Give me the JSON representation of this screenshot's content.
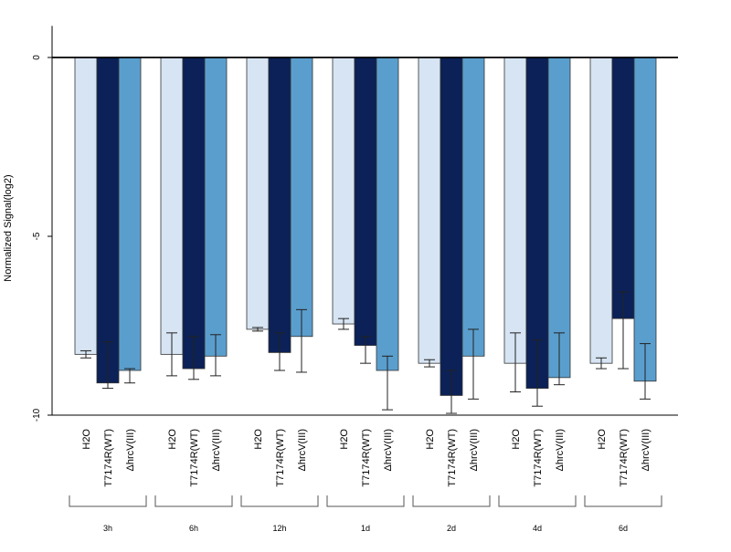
{
  "chart_data": {
    "type": "bar",
    "ylabel": "Normalized Signal(log2)",
    "ylim": [
      -10,
      0.5
    ],
    "yticks": [
      0,
      -5,
      -10
    ],
    "groups": [
      "3h",
      "6h",
      "12h",
      "1d",
      "2d",
      "4d",
      "6d"
    ],
    "treatments": [
      "H2O",
      "T7174R(WT)",
      "ΔhrcV(III)"
    ],
    "colors": [
      "#d6e4f3",
      "#0b2157",
      "#5a9ecd"
    ],
    "series": [
      {
        "values": [
          -8.3,
          -8.3,
          -7.6,
          -7.45,
          -8.55,
          -8.55,
          -8.55
        ],
        "err_low": [
          -8.4,
          -8.9,
          -7.65,
          -7.6,
          -8.65,
          -9.35,
          -8.7
        ],
        "err_high": [
          -8.2,
          -7.7,
          -7.55,
          -7.3,
          -8.45,
          -7.7,
          -8.4
        ]
      },
      {
        "values": [
          -9.1,
          -8.7,
          -8.25,
          -8.05,
          -9.45,
          -9.25,
          -7.3
        ],
        "err_low": [
          -9.25,
          -9.0,
          -8.75,
          -8.55,
          -9.95,
          -9.75,
          -8.7
        ],
        "err_high": [
          -7.95,
          -7.8,
          -7.7,
          -7.8,
          -8.75,
          -7.9,
          -6.55
        ]
      },
      {
        "values": [
          -8.75,
          -8.35,
          -7.8,
          -8.75,
          -8.35,
          -8.95,
          -9.05
        ],
        "err_low": [
          -9.1,
          -8.9,
          -8.8,
          -9.85,
          -9.55,
          -9.15,
          -9.55
        ],
        "err_high": [
          -8.7,
          -7.75,
          -7.05,
          -8.35,
          -7.6,
          -7.7,
          -8.0
        ]
      }
    ]
  }
}
